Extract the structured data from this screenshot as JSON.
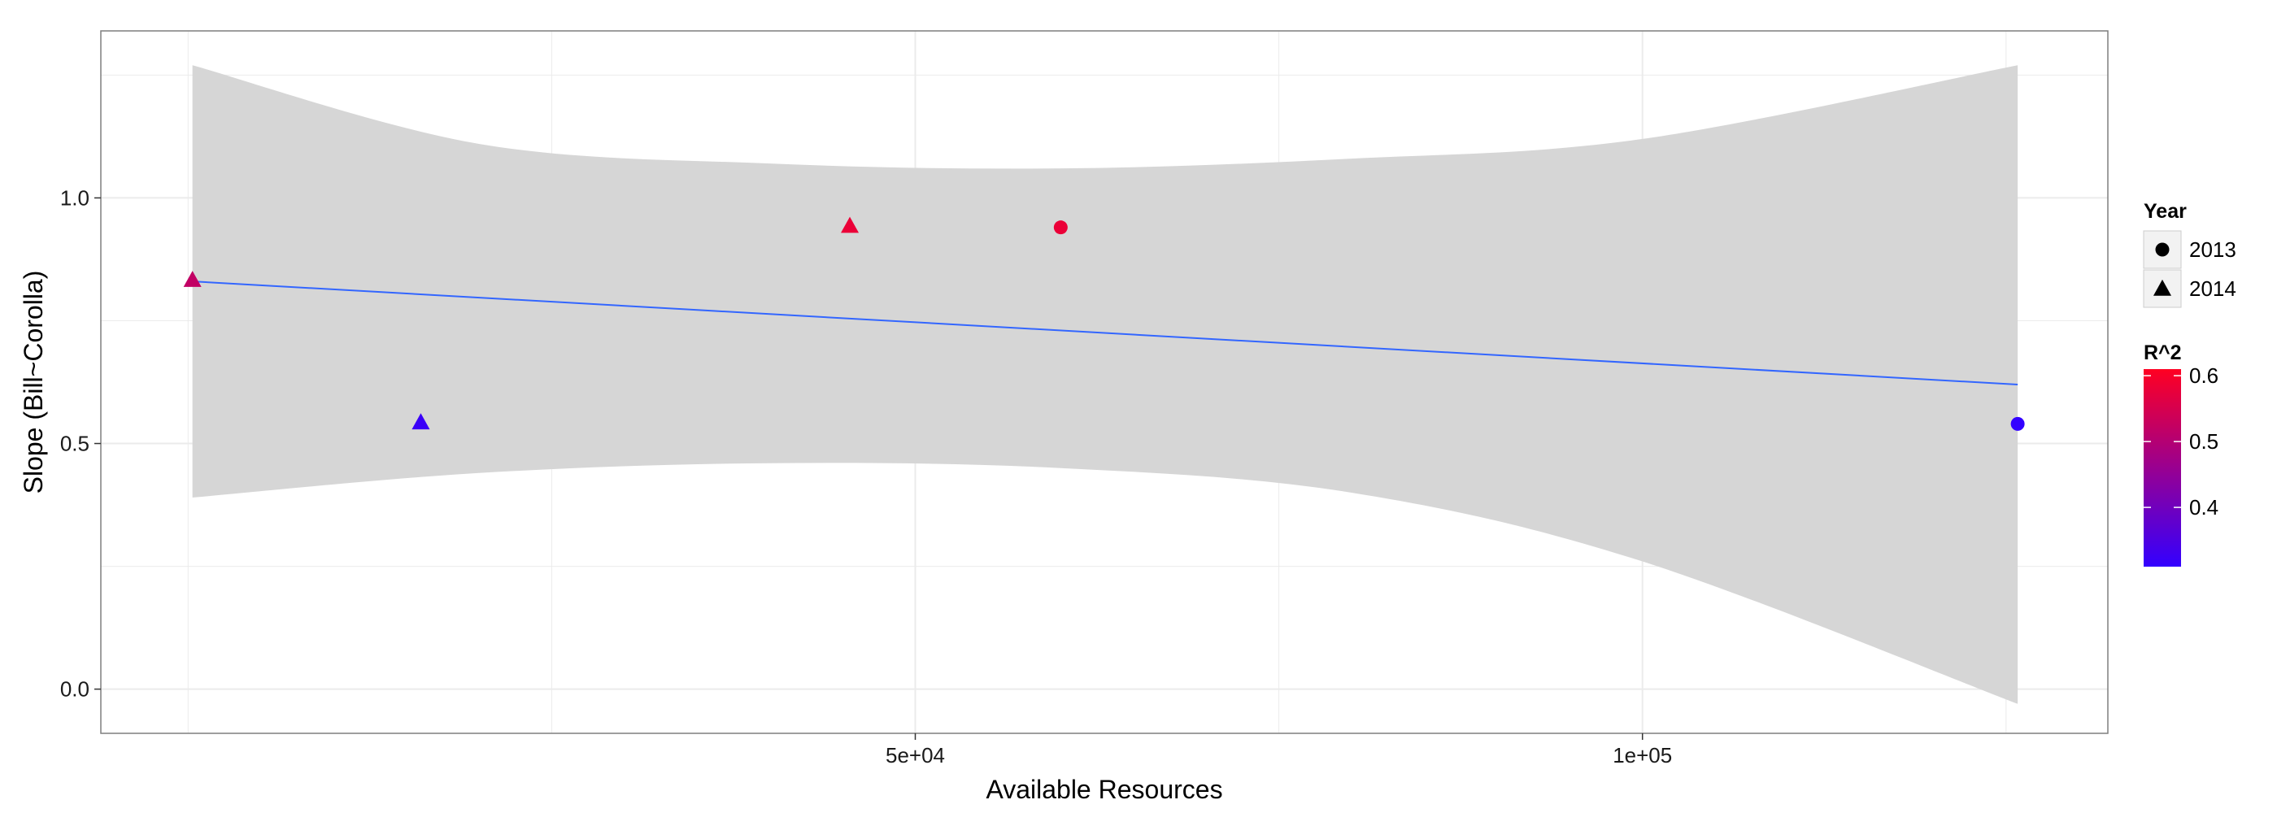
{
  "chart_data": {
    "type": "scatter",
    "xlabel": "Available Resources",
    "ylabel": "Slope (Bill~Corolla)",
    "xlim": [
      -6000,
      132000
    ],
    "ylim": [
      -0.09,
      1.34
    ],
    "x_ticks": [
      50000,
      100000
    ],
    "x_tick_labels": [
      "5e+04",
      "1e+05"
    ],
    "y_ticks": [
      0.0,
      0.5,
      1.0
    ],
    "y_tick_labels": [
      "0.0",
      "0.5",
      "1.0"
    ],
    "grid": true,
    "legend_position": "right",
    "points": [
      {
        "x": 300,
        "y": 0.83,
        "year": "2014",
        "r2": 0.52
      },
      {
        "x": 16000,
        "y": 0.54,
        "year": "2014",
        "r2": 0.32
      },
      {
        "x": 45500,
        "y": 0.94,
        "year": "2014",
        "r2": 0.58
      },
      {
        "x": 60000,
        "y": 0.94,
        "year": "2013",
        "r2": 0.58
      },
      {
        "x": 125800,
        "y": 0.54,
        "year": "2013",
        "r2": 0.31
      }
    ],
    "trend_line": {
      "x": [
        300,
        125800
      ],
      "y": [
        0.83,
        0.62
      ]
    },
    "confidence_band": {
      "x": [
        300,
        20000,
        40000,
        60000,
        80000,
        100000,
        125800
      ],
      "lower": [
        0.39,
        0.44,
        0.46,
        0.45,
        0.4,
        0.26,
        -0.03
      ],
      "upper": [
        1.27,
        1.11,
        1.07,
        1.06,
        1.08,
        1.12,
        1.27
      ]
    },
    "legend_shape": {
      "title": "Year",
      "items": [
        {
          "label": "2013",
          "shape": "circle"
        },
        {
          "label": "2014",
          "shape": "triangle"
        }
      ]
    },
    "legend_color": {
      "title": "R^2",
      "range": [
        0.31,
        0.61
      ],
      "ticks": [
        0.4,
        0.5,
        0.6
      ],
      "tick_labels": [
        "0.4",
        "0.5",
        "0.6"
      ],
      "low_color": "#3300ff",
      "high_color": "#ff0022"
    },
    "colors": {
      "panel_background": "#ffffff",
      "panel_border": "#7f7f7f",
      "grid": "#ebebeb",
      "band": "#d6d6d6",
      "trend_line": "#3366ff"
    }
  }
}
